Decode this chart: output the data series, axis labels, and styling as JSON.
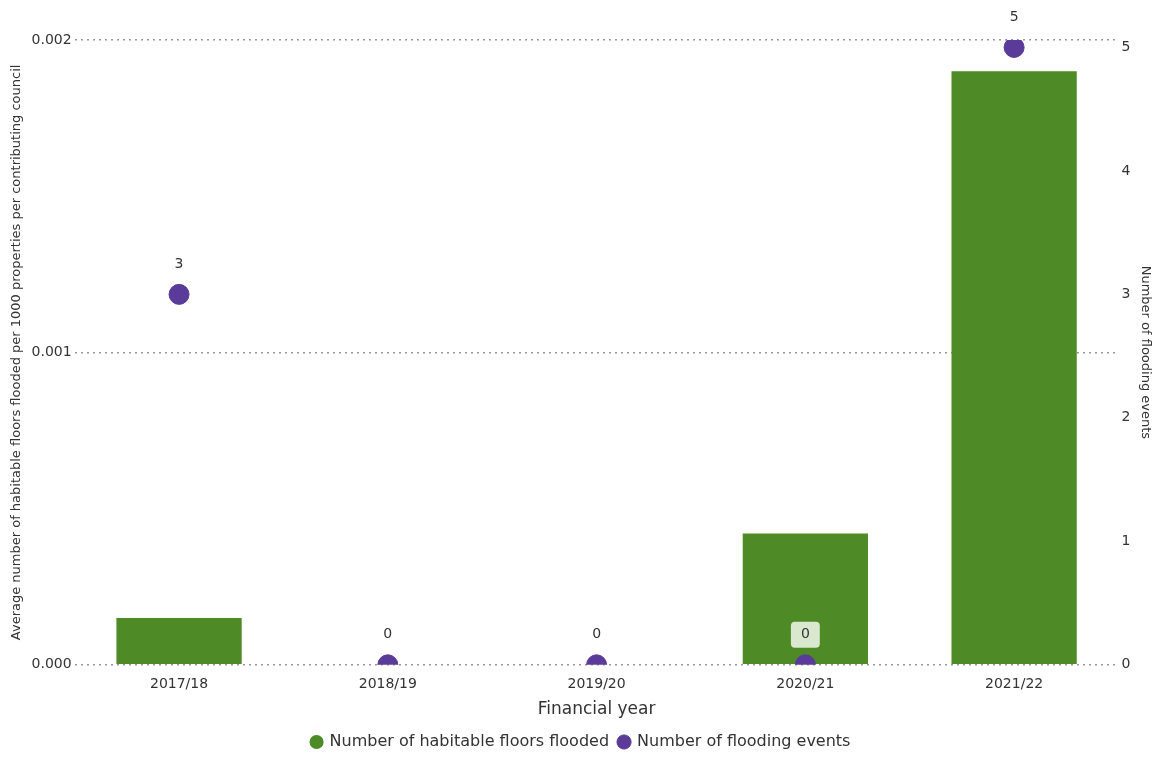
{
  "chart_data": {
    "type": "bar",
    "xlabel": "Financial year",
    "ylabel": "Average number of habitable floors flooded per 1000 properties per contributing council",
    "y2label": "Number of flooding events",
    "categories": [
      "2017/18",
      "2018/19",
      "2019/20",
      "2020/21",
      "2021/22"
    ],
    "series": [
      {
        "name": "Number of habitable floors flooded",
        "type": "bar",
        "color": "#4e8a25",
        "values": [
          0.00015,
          0,
          0,
          0.00042,
          0.0019
        ]
      },
      {
        "name": "Number of flooding events",
        "type": "scatter",
        "axis": "y2",
        "color": "#5b3b9a",
        "values": [
          3,
          0,
          0,
          0,
          5
        ],
        "value_labels": [
          "3",
          "0",
          "0",
          "0",
          "5"
        ]
      }
    ],
    "ylim": [
      0,
      0.002
    ],
    "yticks": [
      {
        "value": 0,
        "label": "0.000"
      },
      {
        "value": 0.001,
        "label": "0.001"
      },
      {
        "value": 0.002,
        "label": "0.002"
      }
    ],
    "y2lim": [
      0,
      5.06
    ],
    "y2ticks": [
      0,
      1,
      2,
      3,
      4,
      5
    ],
    "grid": "y",
    "legend": "bottom",
    "marker": "circle"
  }
}
